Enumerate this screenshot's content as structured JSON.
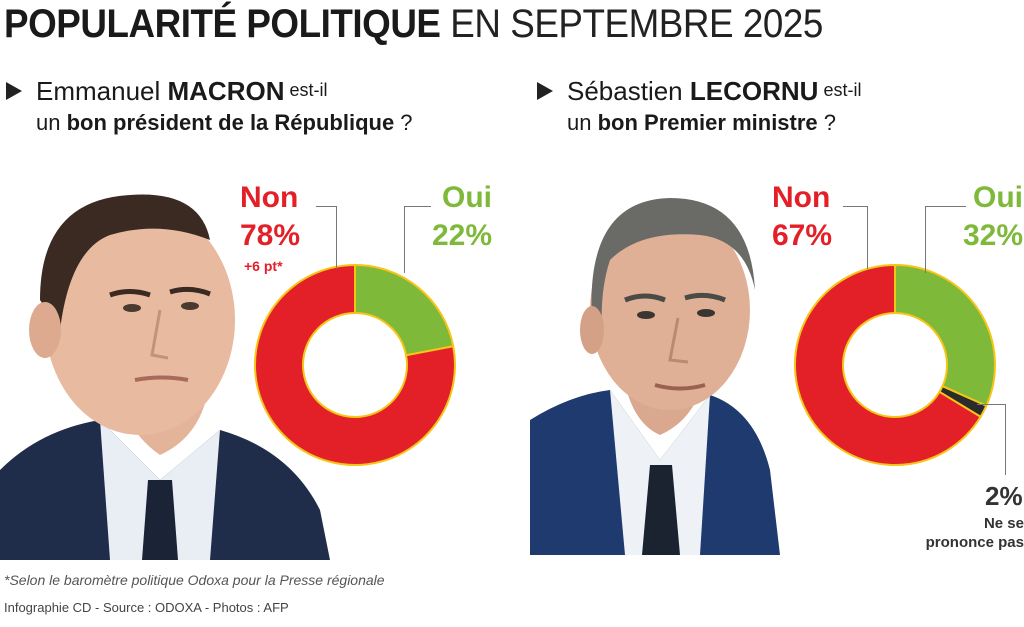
{
  "title": {
    "bold": "POPULARITÉ POLITIQUE",
    "rest": " EN SEPTEMBRE 2025"
  },
  "panels": [
    {
      "question": {
        "name_first": "Emmanuel ",
        "name_last": "MACRON",
        "est_il": " est-il",
        "line2_prefix": "un ",
        "line2_bold": "bon président de la République",
        "line2_suffix": " ?"
      },
      "non": {
        "label": "Non",
        "value": "78%",
        "change": "+6 pt*"
      },
      "oui": {
        "label": "Oui",
        "value": "22%"
      }
    },
    {
      "question": {
        "name_first": "Sébastien ",
        "name_last": "LECORNU",
        "est_il": " est-il",
        "line2_prefix": "un ",
        "line2_bold": "bon Premier ministre",
        "line2_suffix": " ?"
      },
      "non": {
        "label": "Non",
        "value": "67%"
      },
      "oui": {
        "label": "Oui",
        "value": "32%"
      },
      "ns": {
        "value": "2%",
        "line1": "Ne se",
        "line2": "prononce pas"
      }
    }
  ],
  "footnote": "*Selon le baromètre politique Odoxa pour la Presse régionale",
  "credit": "Infographie CD - Source : ODOXA - Photos : AFP",
  "colors": {
    "non": "#e32027",
    "oui": "#7fb93a",
    "ns": "#2b2b2b"
  },
  "chart_data": [
    {
      "type": "pie",
      "title": "Emmanuel MACRON est-il un bon président de la République ?",
      "categories": [
        "Non",
        "Oui"
      ],
      "values": [
        78,
        22
      ],
      "annotations": [
        "+6 pt*"
      ]
    },
    {
      "type": "pie",
      "title": "Sébastien LECORNU est-il un bon Premier ministre ?",
      "categories": [
        "Non",
        "Oui",
        "Ne se prononce pas"
      ],
      "values": [
        67,
        32,
        2
      ]
    }
  ]
}
